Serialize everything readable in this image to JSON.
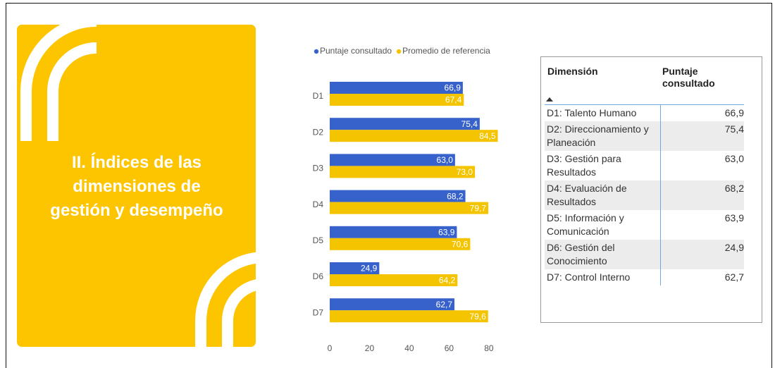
{
  "card": {
    "title": "II. Índices de las dimensiones de gestión y desempeño"
  },
  "chart_data": {
    "type": "barh",
    "categories": [
      "D1",
      "D2",
      "D3",
      "D4",
      "D5",
      "D6",
      "D7"
    ],
    "series": [
      {
        "name": "Puntaje consultado",
        "color": "#3762cc",
        "values": [
          66.9,
          75.4,
          63.0,
          68.2,
          63.9,
          24.9,
          62.7
        ],
        "value_labels": [
          "66,9",
          "75,4",
          "63,0",
          "68,2",
          "63,9",
          "24,9",
          "62,7"
        ]
      },
      {
        "name": "Promedio de referencia",
        "color": "#f5c400",
        "values": [
          67.4,
          84.5,
          73.0,
          79.7,
          70.6,
          64.2,
          79.6
        ],
        "value_labels": [
          "67,4",
          "84,5",
          "73,0",
          "79,7",
          "70,6",
          "64,2",
          "79,6"
        ]
      }
    ],
    "xlim": [
      0,
      85
    ],
    "xticks": [
      0,
      20,
      40,
      60,
      80
    ],
    "legend": "top-left"
  },
  "table": {
    "columns": [
      "Dimensión",
      "Puntaje consultado"
    ],
    "rows": [
      [
        "D1: Talento Humano",
        "66,9"
      ],
      [
        "D2: Direccionamiento y Planeación",
        "75,4"
      ],
      [
        "D3: Gestión para Resultados",
        "63,0"
      ],
      [
        "D4: Evaluación de Resultados",
        "68,2"
      ],
      [
        "D5: Información y Comunicación",
        "63,9"
      ],
      [
        "D6: Gestión del Conocimiento",
        "24,9"
      ],
      [
        "D7: Control Interno",
        "62,7"
      ]
    ]
  }
}
